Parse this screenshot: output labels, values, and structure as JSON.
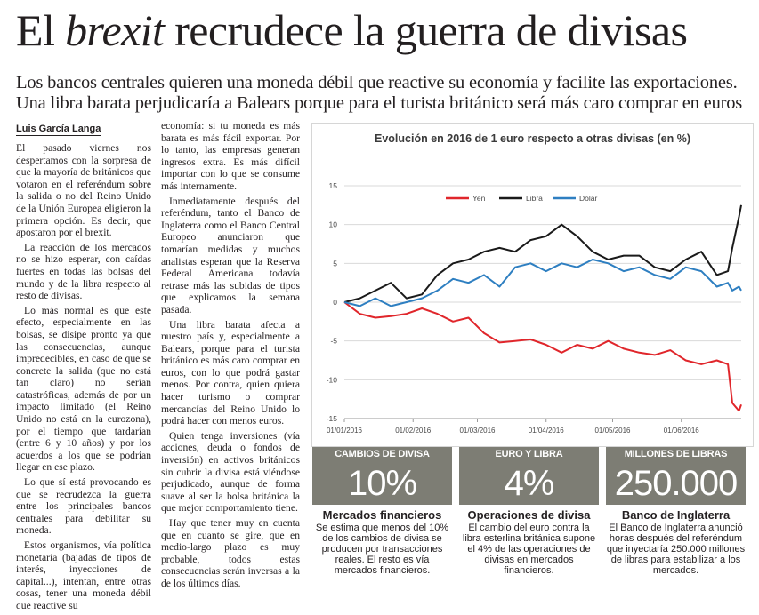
{
  "headline": {
    "part1": "El ",
    "italic": "brexit",
    "part2": " recrudece la guerra de divisas"
  },
  "dek": {
    "line1": "Los bancos centrales quieren una moneda débil que reactive su economía y facilite las exportaciones.",
    "line2": "Una libra barata perjudicaría a Balears porque para el turista británico será más caro comprar en euros"
  },
  "byline": "Luis García Langa",
  "body": {
    "col1": [
      "El pasado viernes nos despertamos con la sorpresa de que la mayoría de británicos que votaron en el referéndum sobre la salida o no del Reino Unido de la Unión Europea eligieron la primera opción. Es decir, que apostaron por el brexit.",
      "La reacción de los mercados no se hizo esperar, con caídas fuertes en todas las bolsas del mundo y de la libra respecto al resto de divisas.",
      "Lo más normal es que este efecto, especialmente en las bolsas, se disipe pronto ya que las consecuencias, aunque impredecibles, en caso de que se concrete la salida (que no está tan claro) no serían catastróficas, además de por un impacto limitado (el Reino Unido no está en la eurozona), por el tiempo que tardarían (entre 6 y 10 años) y por los acuerdos a los que se podrían llegar en ese plazo.",
      "Lo que sí está provocando es que se recrudezca la guerra entre los principales bancos centrales para debilitar su moneda.",
      "Estos organismos, vía política monetaria (bajadas de tipos de interés, inyecciones de capital...), intentan, entre otras cosas, tener una moneda débil que reactive su"
    ],
    "col2": [
      "economía: si tu moneda es más barata es más fácil exportar. Por lo tanto, las empresas generan ingresos extra. Es más difícil importar con lo que se consume más internamente.",
      "Inmediatamente después del referéndum, tanto el Banco de Inglaterra como el Banco Central Europeo anunciaron que tomarían medidas y muchos analistas esperan que la Reserva Federal Americana todavía retrase más las subidas de tipos que explicamos la semana pasada.",
      "Una libra barata afecta a nuestro país y, especialmente a Balears, porque para el turista británico es más caro comprar en euros, con lo que podrá gastar menos. Por contra, quien quiera hacer turismo o comprar mercancías del Reino Unido lo podrá hacer con menos euros.",
      "Quien tenga inversiones (vía acciones, deuda o fondos de inversión) en activos británicos sin cubrir la divisa está viéndose perjudicado, aunque de forma suave al ser la bolsa británica la que mejor comportamiento tiene.",
      "Hay que tener muy en cuenta que en cuanto se gire, que en medio-largo plazo es muy probable, todos estas consecuencias serán inversas a la de los últimos días."
    ]
  },
  "chart_data": {
    "type": "line",
    "title": "Evolución en 2016 de 1 euro respecto a otras divisas (en %)",
    "x": [
      "01/01/2016",
      "08/01/2016",
      "15/01/2016",
      "22/01/2016",
      "29/01/2016",
      "05/02/2016",
      "12/02/2016",
      "19/02/2016",
      "26/02/2016",
      "04/03/2016",
      "11/03/2016",
      "18/03/2016",
      "25/03/2016",
      "01/04/2016",
      "08/04/2016",
      "15/04/2016",
      "22/04/2016",
      "29/04/2016",
      "06/05/2016",
      "13/05/2016",
      "20/05/2016",
      "27/05/2016",
      "03/06/2016",
      "10/06/2016",
      "17/06/2016",
      "22/06/2016",
      "24/06/2016",
      "27/06/2016",
      "28/06/2016"
    ],
    "xticks": [
      "01/01/2016",
      "01/02/2016",
      "01/03/2016",
      "01/04/2016",
      "01/05/2016",
      "01/06/2016"
    ],
    "yticks": [
      -15,
      -10,
      -5,
      0,
      5,
      10,
      15
    ],
    "ylim": [
      -15,
      15
    ],
    "legend_position": "top-left",
    "grid": true,
    "series": [
      {
        "name": "Yen",
        "color": "#e0262b",
        "values": [
          0,
          -1.5,
          -2,
          -1.8,
          -1.5,
          -0.8,
          -1.5,
          -2.5,
          -2.0,
          -4.0,
          -5.2,
          -5.0,
          -4.8,
          -5.5,
          -6.5,
          -5.5,
          -6.0,
          -5.0,
          -6.0,
          -6.5,
          -6.8,
          -6.2,
          -7.5,
          -8.0,
          -7.5,
          -8.0,
          -13.0,
          -14.0,
          -13.2
        ]
      },
      {
        "name": "Libra",
        "color": "#1a1a1a",
        "values": [
          0,
          0.5,
          1.5,
          2.5,
          0.5,
          1.0,
          3.5,
          5.0,
          5.5,
          6.5,
          7.0,
          6.5,
          8.0,
          8.5,
          10.0,
          8.5,
          6.5,
          5.5,
          6.0,
          6.0,
          4.5,
          4.0,
          5.5,
          6.5,
          3.5,
          4.0,
          7.0,
          11.0,
          12.5
        ]
      },
      {
        "name": "Dólar",
        "color": "#2e7fc1",
        "values": [
          0,
          -0.5,
          0.5,
          -0.5,
          0.0,
          0.5,
          1.5,
          3.0,
          2.5,
          3.5,
          2.0,
          4.5,
          5.0,
          4.0,
          5.0,
          4.5,
          5.5,
          5.0,
          4.0,
          4.5,
          3.5,
          3.0,
          4.5,
          4.0,
          2.0,
          2.5,
          1.5,
          2.0,
          1.5
        ]
      }
    ]
  },
  "stats": [
    {
      "label": "CAMBIOS DE DIVISA",
      "value": "10%",
      "subtitle": "Mercados financieros",
      "description": "Se estima que menos del 10% de los cambios de divisa se producen por transacciones reales. El resto es vía mercados financieros."
    },
    {
      "label": "EURO Y LIBRA",
      "value": "4%",
      "subtitle": "Operaciones de divisa",
      "description": "El cambio del euro contra la libra esterlina británica supone el 4% de las operaciones de divisas en mercados financieros."
    },
    {
      "label": "MILLONES DE LIBRAS",
      "value": "250.000",
      "subtitle": "Banco de Inglaterra",
      "description": "El Banco de Inglaterra anunció horas después del referéndum que inyectaría 250.000 millones de libras para estabilizar a los mercados."
    }
  ]
}
